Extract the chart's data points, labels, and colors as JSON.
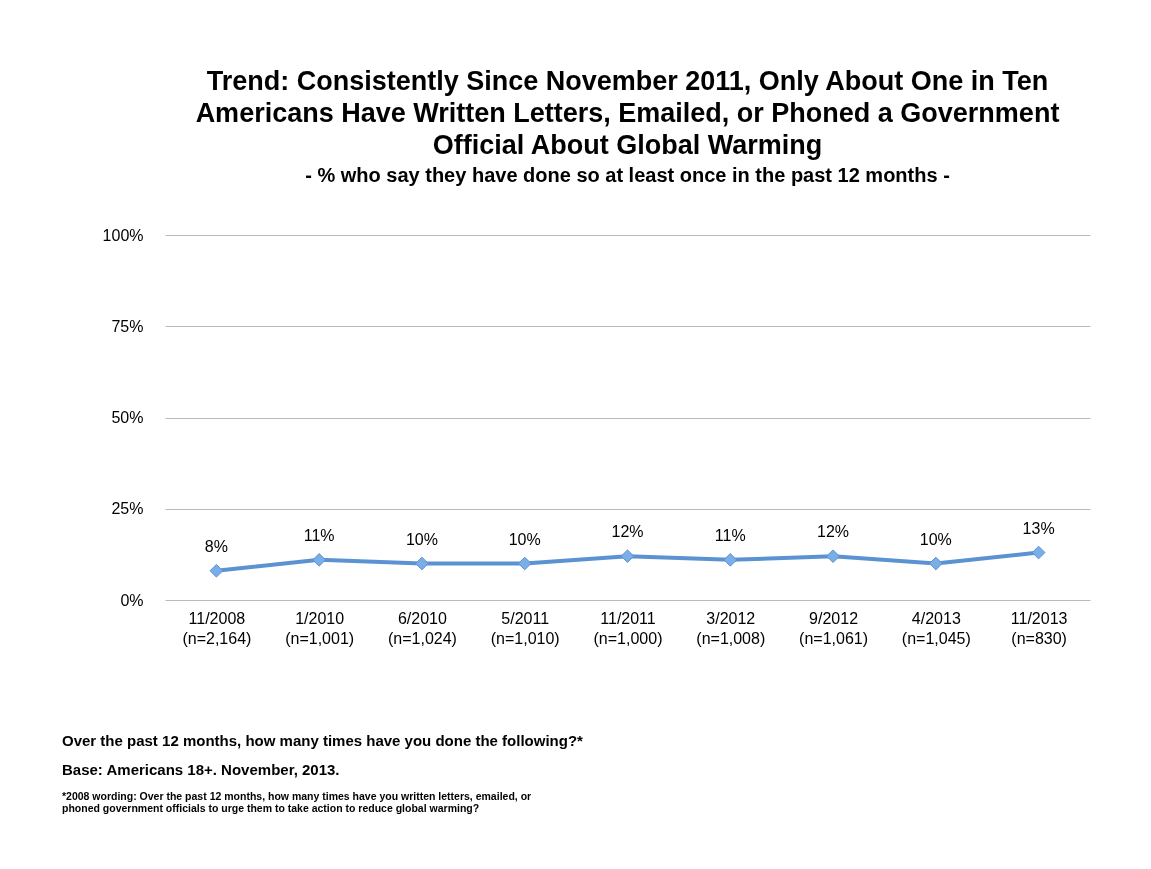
{
  "chart_data": {
    "type": "line",
    "title": "Trend: Consistently Since November 2011, Only About One in Ten Americans Have Written Letters, Emailed, or Phoned a Government Official About Global Warming",
    "subtitle": "- % who say they have done so at least once in the past 12 months -",
    "categories": [
      "11/2008 (n=2,164)",
      "1/2010 (n=1,001)",
      "6/2010 (n=1,024)",
      "5/2011 (n=1,010)",
      "11/2011 (n=1,000)",
      "3/2012 (n=1,008)",
      "9/2012 (n=1,061)",
      "4/2013 (n=1,045)",
      "11/2013 (n=830)"
    ],
    "values": [
      8,
      11,
      10,
      10,
      12,
      11,
      12,
      10,
      13
    ],
    "value_labels": [
      "8%",
      "11%",
      "10%",
      "10%",
      "12%",
      "11%",
      "12%",
      "10%",
      "13%"
    ],
    "color": "#5b92d2",
    "marker": "diamond",
    "grid": "y",
    "ylim": [
      0,
      100
    ],
    "yticks": [
      {
        "value": 0,
        "label": "0%"
      },
      {
        "value": 25,
        "label": "25%"
      },
      {
        "value": 50,
        "label": "50%"
      },
      {
        "value": 75,
        "label": "75%"
      },
      {
        "value": 100,
        "label": "100%"
      }
    ],
    "annotations": [
      "Over the past 12 months, how many times have you done the following?*",
      "Base: Americans 18+. November, 2013.",
      "*2008 wording: Over the past 12 months, how many times have you written letters, emailed, or phoned government officials to urge them to take action to reduce global warming?"
    ]
  }
}
